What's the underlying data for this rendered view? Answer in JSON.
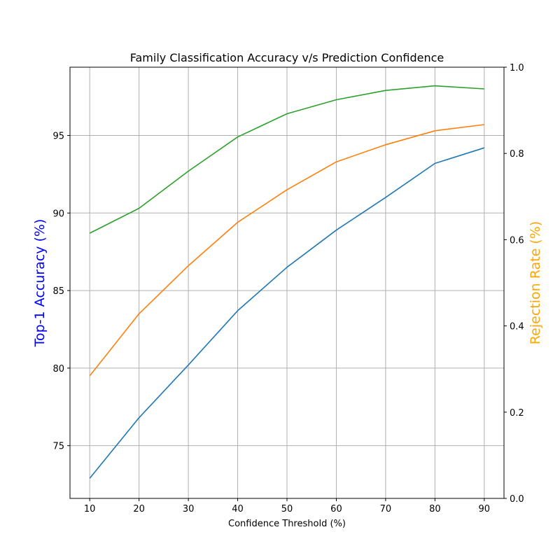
{
  "chart_data": {
    "type": "line",
    "title": "Family Classification Accuracy v/s Prediction Confidence",
    "xlabel": "Confidence Threshold (%)",
    "ylabel": "Top-1 Accuracy (%)",
    "y2label": "Rejection Rate (%)",
    "ylabel_color": "#0000ff",
    "y2label_color": "#ffa500",
    "grid": true,
    "xlim": [
      6,
      94
    ],
    "ylim": [
      71.6,
      99.4
    ],
    "y2lim": [
      0,
      1.0
    ],
    "xticks": [
      10,
      20,
      30,
      40,
      50,
      60,
      70,
      80,
      90
    ],
    "yticks": [
      75,
      80,
      85,
      90,
      95
    ],
    "y2ticks": [
      0.0,
      0.2,
      0.4,
      0.6,
      0.8,
      1.0
    ],
    "y2tick_labels": [
      "0.0",
      "0.2",
      "0.4",
      "0.6",
      "0.8",
      "1.0"
    ],
    "x": [
      10,
      20,
      30,
      40,
      50,
      60,
      70,
      80,
      90
    ],
    "series": [
      {
        "color": "#1f77b4",
        "values": [
          72.9,
          76.8,
          80.2,
          83.7,
          86.5,
          88.9,
          91.0,
          93.2,
          94.2
        ]
      },
      {
        "color": "#ff7f0e",
        "values": [
          79.5,
          83.5,
          86.6,
          89.4,
          91.5,
          93.3,
          94.4,
          95.3,
          95.7
        ]
      },
      {
        "color": "#2ca02c",
        "values": [
          88.7,
          90.3,
          92.7,
          94.9,
          96.4,
          97.3,
          97.9,
          98.2,
          98.0
        ]
      }
    ]
  }
}
